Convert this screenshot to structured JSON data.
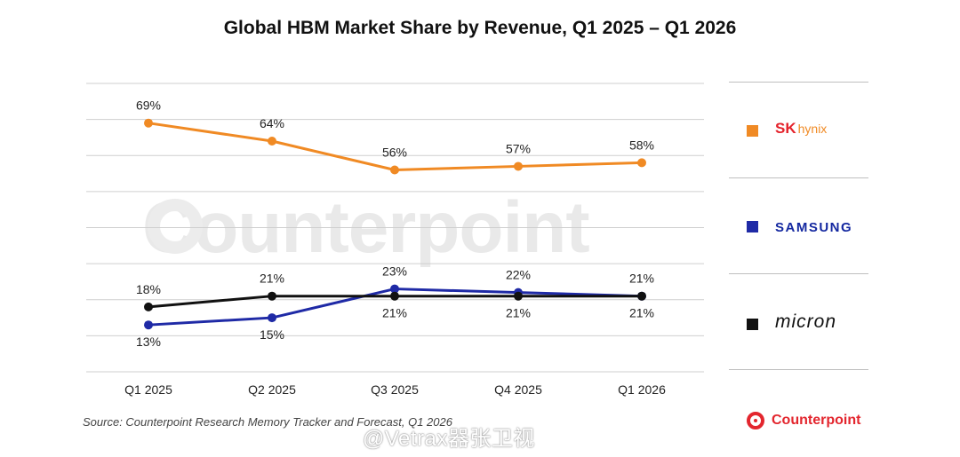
{
  "title": "Global HBM Market Share by Revenue, Q1 2025 – Q1 2026",
  "source": "Source: Counterpoint Research Memory Tracker and Forecast, Q1 2026",
  "watermark": "Counterpoint",
  "logo_text": "Counterpoint",
  "weibo_watermark": "@Vetrax器张卫视",
  "legend": {
    "sk": {
      "brand": "SK",
      "sub": "hynix"
    },
    "samsung": {
      "brand": "SAMSUNG"
    },
    "micron": {
      "brand": "micron"
    }
  },
  "colors": {
    "sk_hynix": "#f08a24",
    "samsung": "#1f2aa6",
    "micron": "#111111",
    "grid": "#cfcfcf"
  },
  "chart_data": {
    "type": "line",
    "title": "Global HBM Market Share by Revenue, Q1 2025 – Q1 2026",
    "xlabel": "",
    "ylabel": "",
    "categories": [
      "Q1 2025",
      "Q2 2025",
      "Q3 2025",
      "Q4 2025",
      "Q1 2026"
    ],
    "series": [
      {
        "key": "sk_hynix",
        "name": "SK hynix",
        "values": [
          69,
          64,
          56,
          57,
          58
        ],
        "labels": [
          "69%",
          "64%",
          "56%",
          "57%",
          "58%"
        ]
      },
      {
        "key": "samsung",
        "name": "SAMSUNG",
        "values": [
          13,
          15,
          23,
          22,
          21
        ],
        "labels": [
          "13%",
          "15%",
          "23%",
          "22%",
          "21%"
        ]
      },
      {
        "key": "micron",
        "name": "micron",
        "values": [
          18,
          21,
          21,
          21,
          21
        ],
        "labels": [
          "18%",
          "21%",
          "21%",
          "21%",
          "21%"
        ]
      }
    ],
    "ylim": [
      0,
      80
    ],
    "grid": true,
    "y_tick_labels_shown": false,
    "legend_position": "right"
  }
}
